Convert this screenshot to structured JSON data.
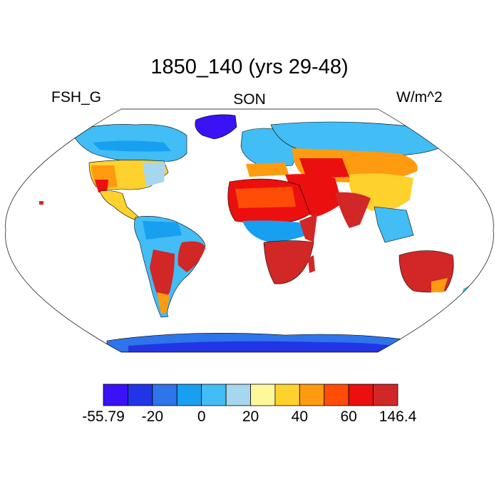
{
  "title": "1850_140 (yrs 29-48)",
  "left_label": "FSH_G",
  "center_label": "SON",
  "right_label": "W/m^2",
  "colorbar": {
    "colors": [
      "#3a12f5",
      "#2235e6",
      "#2e74ea",
      "#17a0f0",
      "#42bdf5",
      "#a7d7ef",
      "#fff89a",
      "#ffd12c",
      "#ff9b10",
      "#ff4c06",
      "#ec0f0f",
      "#d12727"
    ],
    "tick_labels": [
      {
        "text": "-55.79",
        "boundary": 0
      },
      {
        "text": "-20",
        "boundary": 2
      },
      {
        "text": "0",
        "boundary": 4
      },
      {
        "text": "20",
        "boundary": 6
      },
      {
        "text": "40",
        "boundary": 8
      },
      {
        "text": "60",
        "boundary": 10
      },
      {
        "text": "146.4",
        "boundary": 12
      }
    ]
  }
}
